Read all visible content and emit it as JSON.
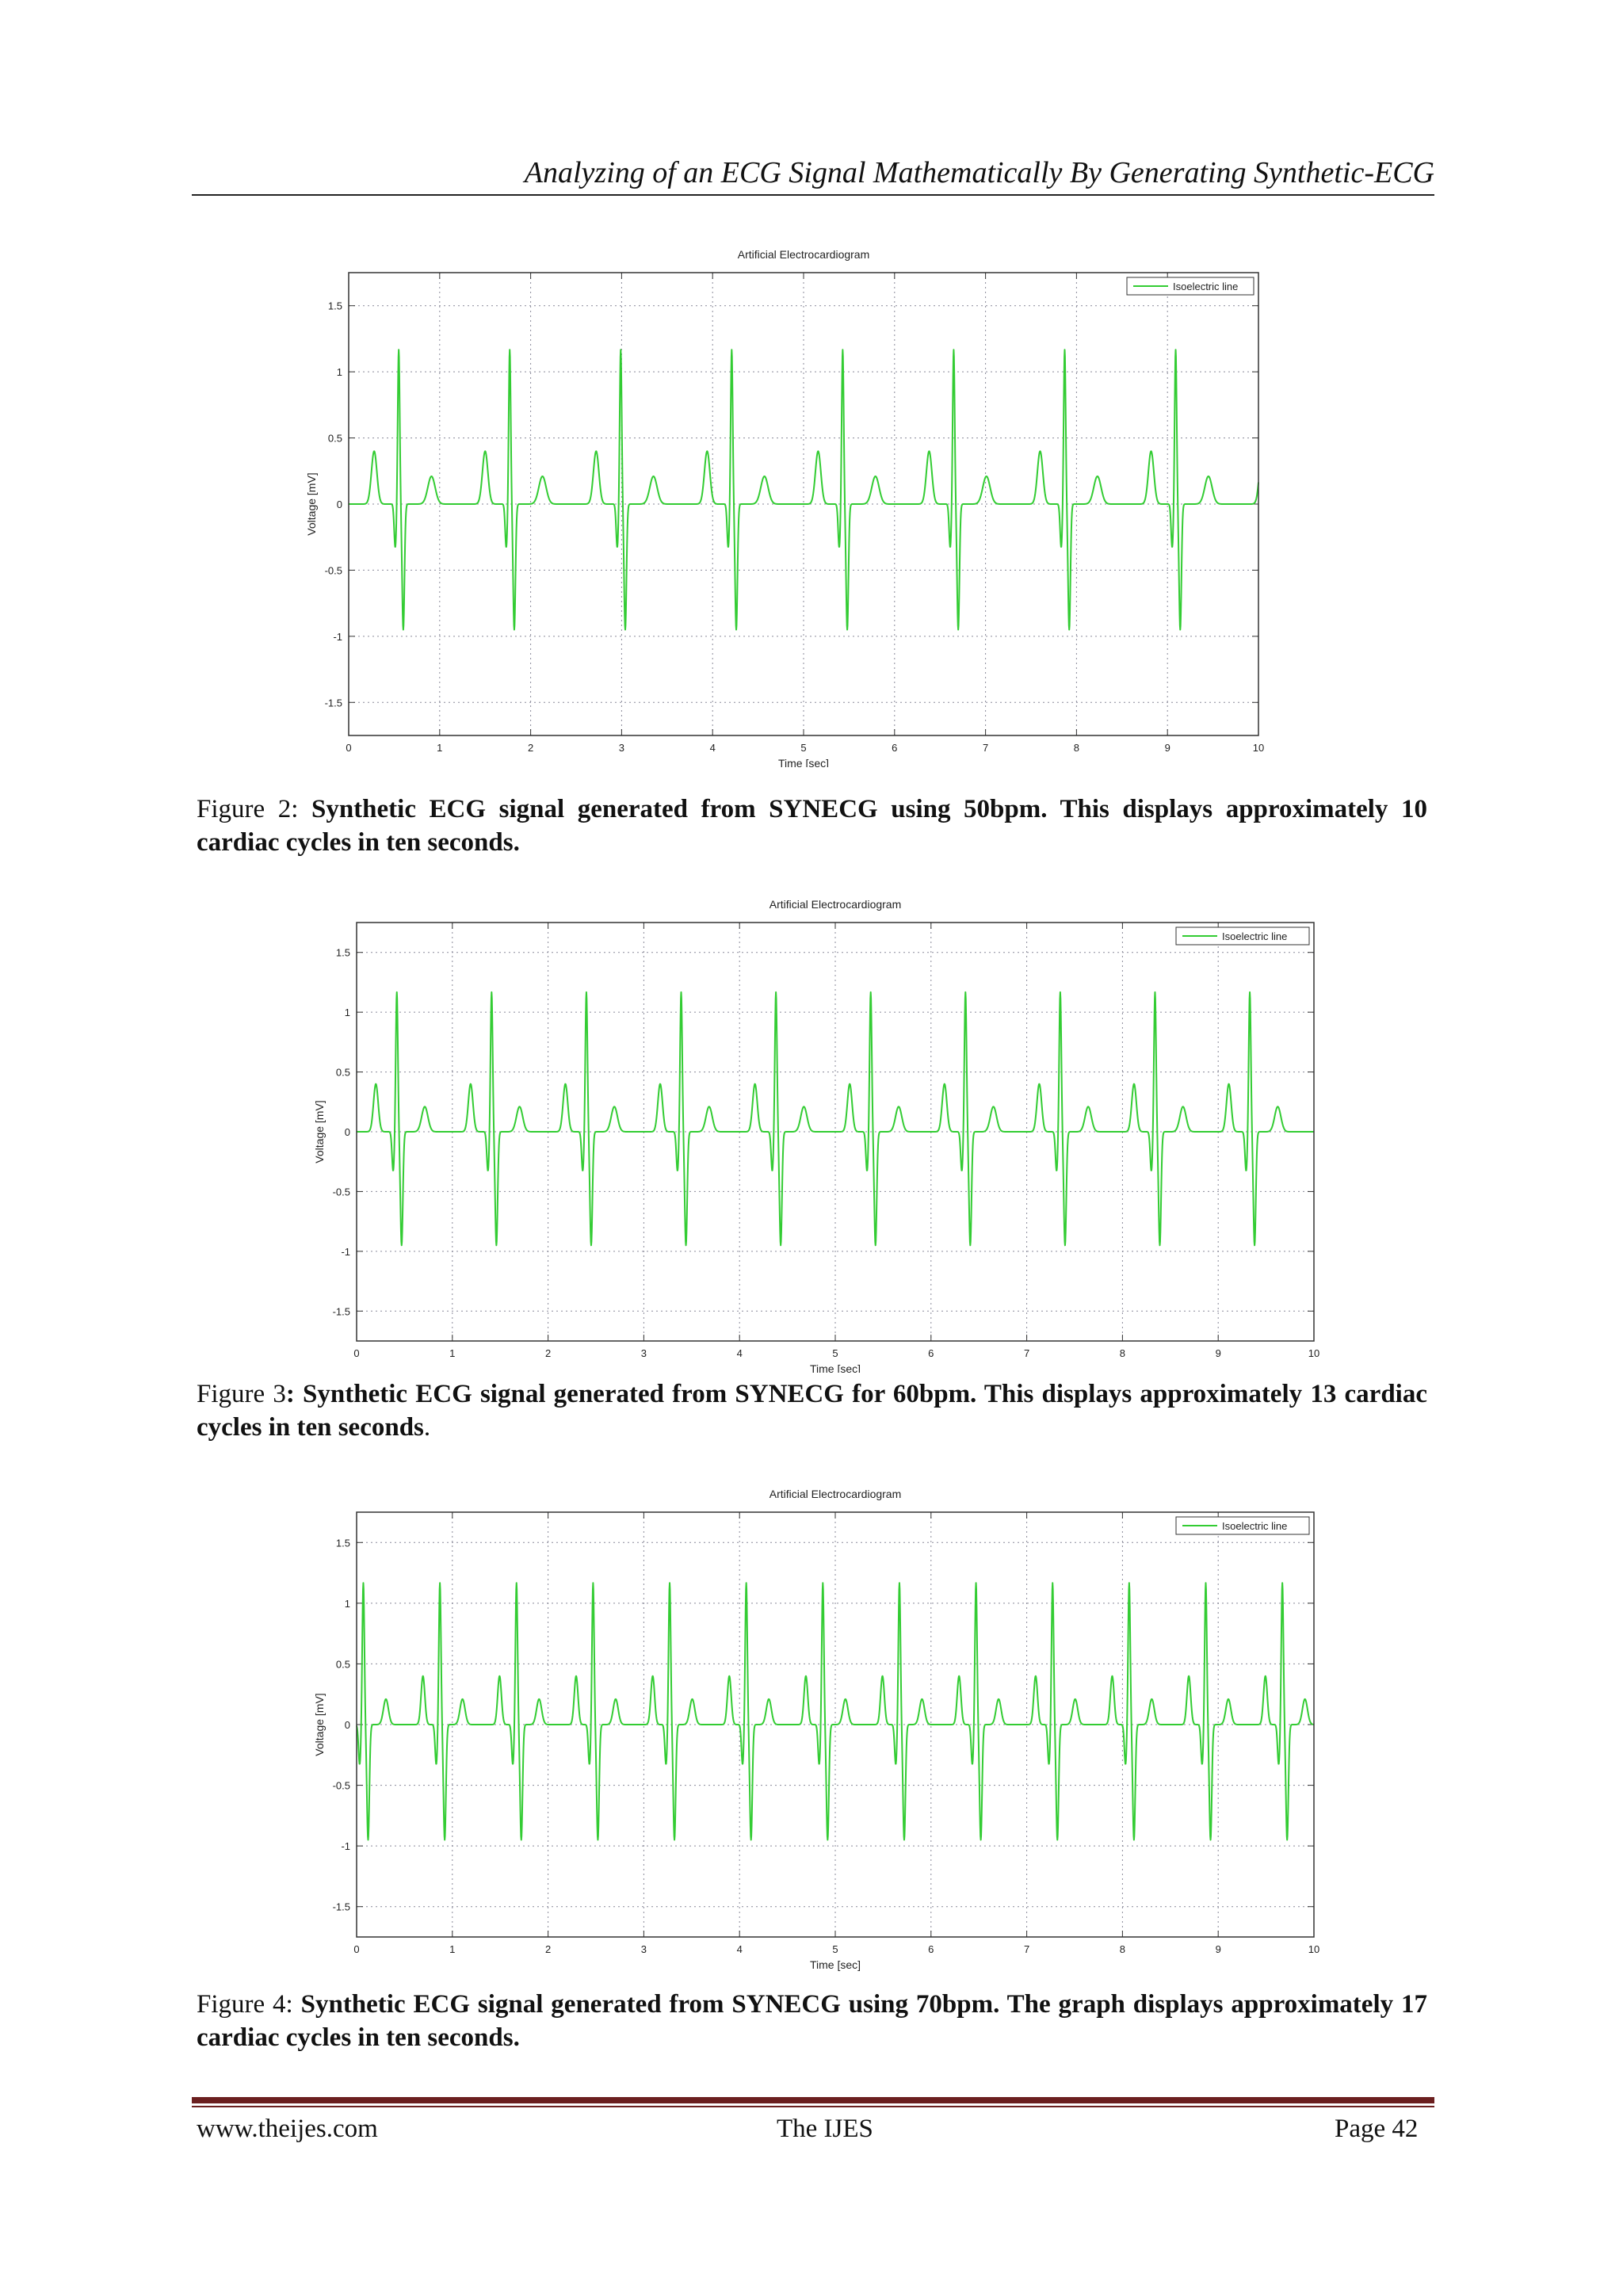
{
  "header": {
    "running_title": "Analyzing of an ECG Signal Mathematically By Generating Synthetic-ECG"
  },
  "figures": [
    {
      "caption_label": "Figure 2: ",
      "caption_bold": "Synthetic ECG signal generated from SYNECG using 50bpm. This displays approximately 10 cardiac cycles in ten seconds.",
      "caption_tail": "",
      "chart_data": {
        "type": "line",
        "title": "Artificial Electrocardiogram",
        "xlabel": "Time [sec]",
        "ylabel": "Voltage [mV]",
        "xlim": [
          0,
          10
        ],
        "ylim": [
          -1.75,
          1.75
        ],
        "xticks": [
          "0",
          "1",
          "2",
          "3",
          "4",
          "5",
          "6",
          "7",
          "8",
          "9",
          "10"
        ],
        "yticks": [
          "-1.5",
          "-1",
          "-0.5",
          "0",
          "0.5",
          "1",
          "1.5"
        ],
        "grid": true,
        "legend_position": "top-right",
        "color": "#33cc33",
        "series": [
          {
            "name": "Isoelectric line"
          }
        ],
        "beat_period_sec": 1.22,
        "first_r_peak_sec": 0.55,
        "waves_mV": {
          "P": 0.4,
          "Q": -0.33,
          "R": 1.17,
          "S": -0.95,
          "T": 0.21
        }
      }
    },
    {
      "caption_label": "Figure 3",
      "caption_bold": ": Synthetic ECG signal generated from SYNECG for 60bpm. This displays approximately 13 cardiac cycles in ten seconds",
      "caption_tail": ".",
      "chart_data": {
        "type": "line",
        "title": "Artificial Electrocardiogram",
        "xlabel": "Time [sec]",
        "ylabel": "Voltage [mV]",
        "xlim": [
          0,
          10
        ],
        "ylim": [
          -1.75,
          1.75
        ],
        "xticks": [
          "0",
          "1",
          "2",
          "3",
          "4",
          "5",
          "6",
          "7",
          "8",
          "9",
          "10"
        ],
        "yticks": [
          "-1.5",
          "-1",
          "-0.5",
          "0",
          "0.5",
          "1",
          "1.5"
        ],
        "grid": true,
        "legend_position": "top-right",
        "color": "#33cc33",
        "series": [
          {
            "name": "Isoelectric line"
          }
        ],
        "beat_period_sec": 0.99,
        "first_r_peak_sec": 0.42,
        "waves_mV": {
          "P": 0.4,
          "Q": -0.33,
          "R": 1.17,
          "S": -0.95,
          "T": 0.21
        }
      }
    },
    {
      "caption_label": "Figure 4: ",
      "caption_bold": "Synthetic ECG signal generated from SYNECG using 70bpm. The graph displays approximately 17 cardiac cycles in ten seconds.",
      "caption_tail": "",
      "chart_data": {
        "type": "line",
        "title": "Artificial Electrocardiogram",
        "xlabel": "Time [sec]",
        "ylabel": "Voltage [mV]",
        "xlim": [
          0,
          10
        ],
        "ylim": [
          -1.75,
          1.75
        ],
        "xticks": [
          "0",
          "1",
          "2",
          "3",
          "4",
          "5",
          "6",
          "7",
          "8",
          "9",
          "10"
        ],
        "yticks": [
          "-1.5",
          "-1",
          "-0.5",
          "0",
          "0.5",
          "1",
          "1.5"
        ],
        "grid": true,
        "legend_position": "top-right",
        "color": "#33cc33",
        "series": [
          {
            "name": "Isoelectric line"
          }
        ],
        "beat_period_sec": 0.8,
        "first_r_peak_sec": 0.07,
        "waves_mV": {
          "P": 0.4,
          "Q": -0.33,
          "R": 1.17,
          "S": -0.95,
          "T": 0.21
        }
      }
    }
  ],
  "footer": {
    "website": "www.theijes.com",
    "journal": "The IJES",
    "page": "Page 42"
  }
}
